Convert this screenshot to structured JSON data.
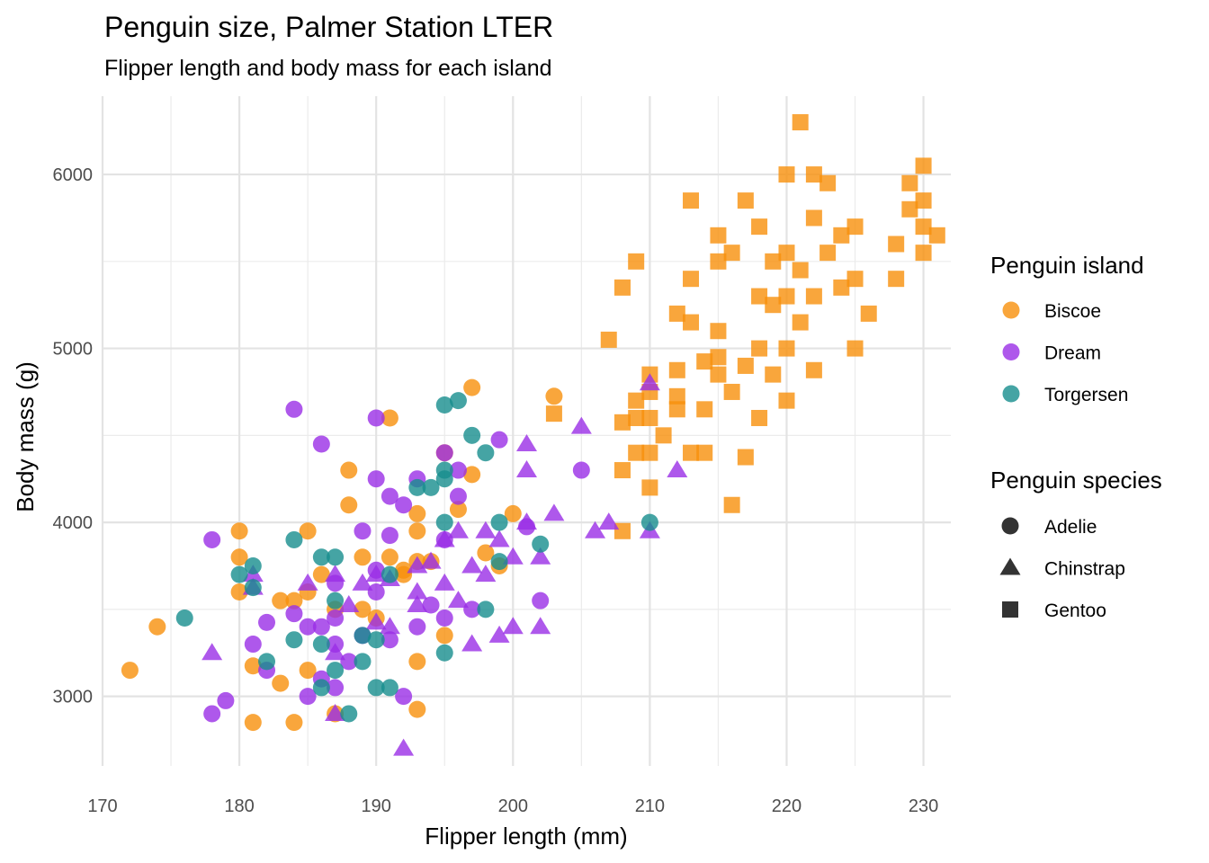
{
  "chart_data": {
    "type": "scatter",
    "title": "Penguin size, Palmer Station LTER",
    "subtitle": "Flipper length and body mass for each island",
    "xlabel": "Flipper length (mm)",
    "ylabel": "Body mass (g)",
    "xlim": [
      170,
      232
    ],
    "ylim": [
      2600,
      6450
    ],
    "xticks": [
      170,
      180,
      190,
      200,
      210,
      220,
      230
    ],
    "yticks": [
      3000,
      4000,
      5000,
      6000
    ],
    "grid": true,
    "legend_position": "right",
    "color_legend": {
      "title": "Penguin island",
      "items": [
        {
          "label": "Biscoe",
          "color": "#F7900B"
        },
        {
          "label": "Dream",
          "color": "#9A2EE6"
        },
        {
          "label": "Torgersen",
          "color": "#168D8D"
        }
      ]
    },
    "shape_legend": {
      "title": "Penguin species",
      "items": [
        {
          "label": "Adelie",
          "shape": "circle"
        },
        {
          "label": "Chinstrap",
          "shape": "triangle"
        },
        {
          "label": "Gentoo",
          "shape": "square"
        }
      ]
    },
    "series": [
      {
        "island": "Biscoe",
        "species": "Adelie",
        "points": [
          [
            172,
            3150
          ],
          [
            174,
            3400
          ],
          [
            180,
            3950
          ],
          [
            180,
            3800
          ],
          [
            180,
            3600
          ],
          [
            181,
            3175
          ],
          [
            181,
            2850
          ],
          [
            183,
            3550
          ],
          [
            183,
            3075
          ],
          [
            184,
            3550
          ],
          [
            184,
            2850
          ],
          [
            185,
            3950
          ],
          [
            185,
            3600
          ],
          [
            185,
            3150
          ],
          [
            186,
            3700
          ],
          [
            187,
            3500
          ],
          [
            187,
            2900
          ],
          [
            188,
            4300
          ],
          [
            188,
            4100
          ],
          [
            189,
            3800
          ],
          [
            189,
            3500
          ],
          [
            190,
            3450
          ],
          [
            191,
            4600
          ],
          [
            191,
            3800
          ],
          [
            192,
            3700
          ],
          [
            192,
            3725
          ],
          [
            193,
            3775
          ],
          [
            193,
            3950
          ],
          [
            193,
            4050
          ],
          [
            193,
            3200
          ],
          [
            193,
            2925
          ],
          [
            194,
            3775
          ],
          [
            195,
            3350
          ],
          [
            195,
            4400
          ],
          [
            196,
            4075
          ],
          [
            197,
            4775
          ],
          [
            197,
            4275
          ],
          [
            198,
            3825
          ],
          [
            199,
            3750
          ],
          [
            200,
            4050
          ],
          [
            203,
            4725
          ]
        ]
      },
      {
        "island": "Biscoe",
        "species": "Gentoo",
        "points": [
          [
            203,
            4625
          ],
          [
            207,
            5050
          ],
          [
            208,
            5350
          ],
          [
            208,
            4575
          ],
          [
            208,
            4300
          ],
          [
            208,
            3950
          ],
          [
            209,
            5500
          ],
          [
            209,
            4700
          ],
          [
            209,
            4600
          ],
          [
            209,
            4400
          ],
          [
            210,
            4850
          ],
          [
            210,
            4750
          ],
          [
            210,
            4600
          ],
          [
            210,
            4400
          ],
          [
            210,
            4200
          ],
          [
            211,
            4500
          ],
          [
            212,
            5200
          ],
          [
            212,
            4875
          ],
          [
            212,
            4725
          ],
          [
            212,
            4650
          ],
          [
            213,
            5850
          ],
          [
            213,
            5400
          ],
          [
            213,
            5150
          ],
          [
            213,
            4400
          ],
          [
            214,
            4925
          ],
          [
            214,
            4650
          ],
          [
            214,
            4400
          ],
          [
            215,
            5650
          ],
          [
            215,
            5500
          ],
          [
            215,
            5100
          ],
          [
            215,
            4950
          ],
          [
            215,
            4850
          ],
          [
            216,
            5550
          ],
          [
            216,
            4750
          ],
          [
            216,
            4100
          ],
          [
            217,
            5850
          ],
          [
            217,
            4900
          ],
          [
            217,
            4375
          ],
          [
            218,
            5700
          ],
          [
            218,
            5300
          ],
          [
            218,
            5000
          ],
          [
            218,
            4600
          ],
          [
            219,
            5500
          ],
          [
            219,
            5250
          ],
          [
            219,
            4850
          ],
          [
            220,
            6000
          ],
          [
            220,
            5550
          ],
          [
            220,
            5300
          ],
          [
            220,
            5000
          ],
          [
            220,
            4700
          ],
          [
            221,
            6300
          ],
          [
            221,
            5450
          ],
          [
            221,
            5150
          ],
          [
            222,
            6000
          ],
          [
            222,
            5750
          ],
          [
            222,
            5300
          ],
          [
            222,
            4875
          ],
          [
            223,
            5950
          ],
          [
            223,
            5550
          ],
          [
            224,
            5650
          ],
          [
            224,
            5350
          ],
          [
            225,
            5700
          ],
          [
            225,
            5400
          ],
          [
            225,
            5000
          ],
          [
            226,
            5200
          ],
          [
            228,
            5600
          ],
          [
            228,
            5400
          ],
          [
            229,
            5950
          ],
          [
            229,
            5800
          ],
          [
            230,
            6050
          ],
          [
            230,
            5850
          ],
          [
            230,
            5700
          ],
          [
            230,
            5550
          ],
          [
            231,
            5650
          ]
        ]
      },
      {
        "island": "Dream",
        "species": "Adelie",
        "points": [
          [
            178,
            3900
          ],
          [
            178,
            2900
          ],
          [
            179,
            2975
          ],
          [
            181,
            3300
          ],
          [
            182,
            3425
          ],
          [
            182,
            3150
          ],
          [
            184,
            4650
          ],
          [
            184,
            3475
          ],
          [
            185,
            3400
          ],
          [
            185,
            3000
          ],
          [
            186,
            4450
          ],
          [
            186,
            3400
          ],
          [
            186,
            3100
          ],
          [
            187,
            3650
          ],
          [
            187,
            3450
          ],
          [
            187,
            3300
          ],
          [
            187,
            3050
          ],
          [
            188,
            3200
          ],
          [
            189,
            3950
          ],
          [
            189,
            3350
          ],
          [
            190,
            4600
          ],
          [
            190,
            4250
          ],
          [
            190,
            3725
          ],
          [
            190,
            3600
          ],
          [
            191,
            4150
          ],
          [
            191,
            3925
          ],
          [
            191,
            3325
          ],
          [
            192,
            4100
          ],
          [
            192,
            3000
          ],
          [
            193,
            4250
          ],
          [
            193,
            3400
          ],
          [
            194,
            3525
          ],
          [
            195,
            3900
          ],
          [
            195,
            3450
          ],
          [
            195,
            4400
          ],
          [
            196,
            4300
          ],
          [
            196,
            4150
          ],
          [
            197,
            3500
          ],
          [
            199,
            4475
          ],
          [
            201,
            3975
          ],
          [
            202,
            3550
          ],
          [
            205,
            4300
          ]
        ]
      },
      {
        "island": "Dream",
        "species": "Chinstrap",
        "points": [
          [
            178,
            3250
          ],
          [
            181,
            3700
          ],
          [
            181,
            3625
          ],
          [
            185,
            3650
          ],
          [
            187,
            3700
          ],
          [
            187,
            3250
          ],
          [
            187,
            2900
          ],
          [
            188,
            3525
          ],
          [
            189,
            3650
          ],
          [
            190,
            3700
          ],
          [
            190,
            3425
          ],
          [
            191,
            3675
          ],
          [
            191,
            3400
          ],
          [
            192,
            2700
          ],
          [
            193,
            3750
          ],
          [
            193,
            3600
          ],
          [
            193,
            3525
          ],
          [
            194,
            3775
          ],
          [
            195,
            3650
          ],
          [
            195,
            3900
          ],
          [
            196,
            3950
          ],
          [
            196,
            3550
          ],
          [
            197,
            3750
          ],
          [
            197,
            3300
          ],
          [
            198,
            3700
          ],
          [
            198,
            3950
          ],
          [
            199,
            3900
          ],
          [
            199,
            3350
          ],
          [
            200,
            3800
          ],
          [
            200,
            3400
          ],
          [
            201,
            4450
          ],
          [
            201,
            4300
          ],
          [
            201,
            4000
          ],
          [
            202,
            3800
          ],
          [
            202,
            3400
          ],
          [
            203,
            4050
          ],
          [
            205,
            4550
          ],
          [
            206,
            3950
          ],
          [
            207,
            4000
          ],
          [
            210,
            4800
          ],
          [
            210,
            3950
          ],
          [
            212,
            4300
          ]
        ]
      },
      {
        "island": "Torgersen",
        "species": "Adelie",
        "points": [
          [
            176,
            3450
          ],
          [
            180,
            3700
          ],
          [
            181,
            3750
          ],
          [
            181,
            3625
          ],
          [
            182,
            3200
          ],
          [
            184,
            3900
          ],
          [
            184,
            3325
          ],
          [
            186,
            3800
          ],
          [
            186,
            3300
          ],
          [
            186,
            3050
          ],
          [
            187,
            3800
          ],
          [
            187,
            3550
          ],
          [
            187,
            3150
          ],
          [
            188,
            2900
          ],
          [
            189,
            3350
          ],
          [
            189,
            3200
          ],
          [
            190,
            3325
          ],
          [
            190,
            3050
          ],
          [
            191,
            3700
          ],
          [
            191,
            3050
          ],
          [
            193,
            4200
          ],
          [
            194,
            4200
          ],
          [
            195,
            4675
          ],
          [
            195,
            4300
          ],
          [
            195,
            4250
          ],
          [
            195,
            3250
          ],
          [
            195,
            4000
          ],
          [
            196,
            4700
          ],
          [
            197,
            4500
          ],
          [
            198,
            4400
          ],
          [
            198,
            3500
          ],
          [
            199,
            4000
          ],
          [
            199,
            3775
          ],
          [
            202,
            3875
          ],
          [
            210,
            4000
          ]
        ]
      }
    ]
  }
}
